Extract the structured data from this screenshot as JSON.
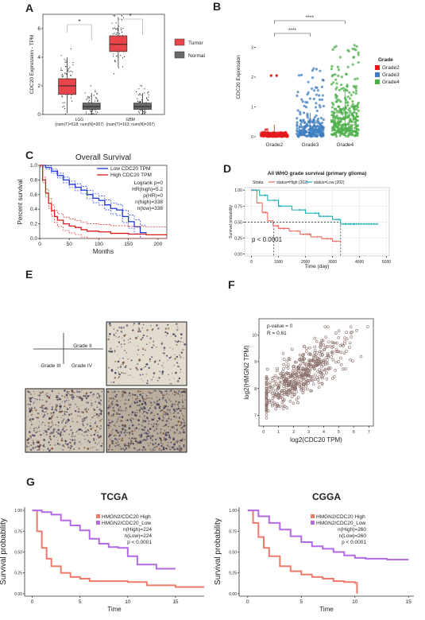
{
  "panel_letters": [
    "A",
    "B",
    "C",
    "D",
    "E",
    "F",
    "G"
  ],
  "colors": {
    "tumor": "#e8444a",
    "normal": "#6a6a6a",
    "grade2": "#e41a1c",
    "grade3": "#3e7dbf",
    "grade4": "#4daf4a",
    "km_low": "#1a34d9",
    "km_high": "#d91a1a",
    "km_d_high": "#ee6b62",
    "km_d_low": "#17b0b6",
    "g_high": "#ee7a6b",
    "g_low": "#b46ae3",
    "scatter": "#8a6f6a"
  },
  "chart_data": [
    {
      "panel": "A",
      "type": "box",
      "ylabel": "CDC20 Expression - TPM",
      "yticks": [
        "0",
        "2",
        "4",
        "6"
      ],
      "ylim": [
        0,
        7
      ],
      "legend": [
        "Tumor",
        "Normal"
      ],
      "categories": [
        "LGG",
        "GBM"
      ],
      "category_notes": [
        "(num(T)=518; num(N)=207)",
        "(num(T)=163; num(N)=207)"
      ],
      "significance": [
        "*",
        "*"
      ],
      "boxes": [
        {
          "group": "LGG",
          "series": "Tumor",
          "q1": 1.4,
          "median": 2.0,
          "q3": 2.5,
          "whisker_low": 0.1,
          "whisker_high": 4.0
        },
        {
          "group": "LGG",
          "series": "Normal",
          "q1": 0.35,
          "median": 0.55,
          "q3": 0.8,
          "whisker_low": 0.0,
          "whisker_high": 1.5
        },
        {
          "group": "GBM",
          "series": "Tumor",
          "q1": 4.4,
          "median": 4.9,
          "q3": 5.5,
          "whisker_low": 3.3,
          "whisker_high": 6.8
        },
        {
          "group": "GBM",
          "series": "Normal",
          "q1": 0.35,
          "median": 0.55,
          "q3": 0.8,
          "whisker_low": 0.0,
          "whisker_high": 1.5
        }
      ]
    },
    {
      "panel": "B",
      "type": "box",
      "ylabel": "CDC20 Expression",
      "yticks": [
        "0",
        "1",
        "2",
        "3"
      ],
      "ylim": [
        0,
        4
      ],
      "categories": [
        "Grade2",
        "Grade3",
        "Grade4"
      ],
      "legend_title": "Grade",
      "legend": [
        "Grade2",
        "Grade3",
        "Grade4"
      ],
      "significance": [
        "****",
        "****"
      ],
      "boxes": [
        {
          "group": "Grade2",
          "q1": 0.02,
          "median": 0.06,
          "q3": 0.15,
          "whisker_low": 0.0,
          "whisker_high": 0.4
        },
        {
          "group": "Grade3",
          "q1": 0.05,
          "median": 0.15,
          "q3": 0.35,
          "whisker_low": 0.0,
          "whisker_high": 0.8
        },
        {
          "group": "Grade4",
          "q1": 0.2,
          "median": 0.4,
          "q3": 0.8,
          "whisker_low": 0.0,
          "whisker_high": 1.6
        }
      ]
    },
    {
      "panel": "C",
      "type": "line",
      "title": "Overall Survival",
      "xlabel": "Months",
      "ylabel": "Percent survival",
      "xticks": [
        "0",
        "50",
        "100",
        "150",
        "200"
      ],
      "yticks": [
        "0.0",
        "0.2",
        "0.4",
        "0.6",
        "0.8",
        "1.0"
      ],
      "xlim": [
        0,
        215
      ],
      "ylim": [
        0,
        1.0
      ],
      "legend": [
        "Low CDC20 TPM",
        "High CDC20 TPM"
      ],
      "stats": [
        "Logrank p=0",
        "HR(high)=5.2",
        "p(HR)=0",
        "n(high)=338",
        "n(low)=338"
      ],
      "series": [
        {
          "name": "Low CDC20 TPM",
          "x": [
            0,
            10,
            20,
            30,
            40,
            50,
            60,
            70,
            80,
            90,
            100,
            110,
            120,
            130,
            140,
            150,
            160,
            170,
            180
          ],
          "y": [
            1.0,
            0.97,
            0.92,
            0.86,
            0.8,
            0.74,
            0.7,
            0.66,
            0.6,
            0.55,
            0.52,
            0.46,
            0.41,
            0.39,
            0.3,
            0.23,
            0.16,
            0.08,
            0.07
          ]
        },
        {
          "name": "High CDC20 TPM",
          "x": [
            0,
            5,
            10,
            15,
            20,
            25,
            30,
            40,
            50,
            60,
            70,
            80,
            100,
            120,
            150,
            180,
            215
          ],
          "y": [
            1.0,
            0.8,
            0.62,
            0.48,
            0.38,
            0.3,
            0.25,
            0.2,
            0.17,
            0.15,
            0.12,
            0.1,
            0.09,
            0.07,
            0.06,
            0.05,
            0.05
          ]
        }
      ]
    },
    {
      "panel": "D",
      "type": "line",
      "title": "All WHO grade survival (primary glioma)",
      "xlabel": "Time (day)",
      "ylabel": "Survival probability",
      "xticks": [
        "0",
        "1000",
        "2000",
        "3000",
        "4000",
        "5000"
      ],
      "yticks": [
        "0.00",
        "0.25",
        "0.50",
        "0.75",
        "1.00"
      ],
      "xlim": [
        0,
        5000
      ],
      "ylim": [
        0,
        1.0
      ],
      "legend_title": "Strata",
      "legend": [
        "status=High (202)",
        "status=Low (202)"
      ],
      "pvalue": "p < 0.0001",
      "series": [
        {
          "name": "status=High (202)",
          "x": [
            0,
            200,
            400,
            600,
            800,
            1000,
            1400,
            1800,
            2200,
            2600,
            3000,
            3300
          ],
          "y": [
            1.0,
            0.8,
            0.65,
            0.52,
            0.44,
            0.4,
            0.36,
            0.31,
            0.27,
            0.24,
            0.2,
            0.17
          ]
        },
        {
          "name": "status=Low (202)",
          "x": [
            0,
            300,
            600,
            1000,
            1500,
            2000,
            2500,
            3000,
            3300,
            3500,
            4000,
            4700
          ],
          "y": [
            1.0,
            0.92,
            0.84,
            0.75,
            0.69,
            0.64,
            0.59,
            0.54,
            0.47,
            0.47,
            0.47,
            0.47
          ]
        }
      ]
    },
    {
      "panel": "E",
      "type": "other",
      "labels": [
        "Grade II",
        "Grade III",
        "Grade IV"
      ]
    },
    {
      "panel": "F",
      "type": "scatter",
      "xlabel": "log2(CDC20 TPM)",
      "ylabel": "log2(HMGN2 TPM)",
      "xticks": [
        "0",
        "1",
        "2",
        "3",
        "4",
        "5",
        "6",
        "7"
      ],
      "yticks": [
        "7",
        "8",
        "9",
        "10"
      ],
      "xlim": [
        -0.3,
        7.3
      ],
      "ylim": [
        6.6,
        10.6
      ],
      "stats": [
        "p-value = 0",
        "R = 0.61"
      ]
    },
    {
      "panel": "G",
      "type": "line",
      "title": "TCGA",
      "xlabel": "Time",
      "ylabel": "Survival probability",
      "xticks": [
        "0",
        "5",
        "10",
        "15"
      ],
      "yticks": [
        "0.00",
        "0.25",
        "0.50",
        "0.75",
        "1.00"
      ],
      "xlim": [
        0,
        18
      ],
      "ylim": [
        0,
        1.0
      ],
      "legend": [
        "HMGN2/CDC20 High",
        "HMGN2/CDC20_Low"
      ],
      "stats": [
        "n(High)=224",
        "n(Low)=224",
        "p < 0.0001"
      ],
      "series": [
        {
          "name": "HMGN2/CDC20 High",
          "x": [
            0,
            0.5,
            1,
            1.5,
            2,
            3,
            4,
            5,
            6,
            8,
            10,
            12,
            15,
            18
          ],
          "y": [
            1.0,
            0.75,
            0.55,
            0.42,
            0.33,
            0.25,
            0.2,
            0.18,
            0.15,
            0.15,
            0.14,
            0.1,
            0.08,
            0.08
          ]
        },
        {
          "name": "HMGN2/CDC20_Low",
          "x": [
            0,
            1,
            2,
            3,
            4,
            5,
            6,
            7,
            8,
            9,
            10,
            11,
            13,
            15
          ],
          "y": [
            1.0,
            0.98,
            0.95,
            0.88,
            0.82,
            0.76,
            0.66,
            0.6,
            0.56,
            0.55,
            0.45,
            0.35,
            0.3,
            0.3
          ]
        }
      ]
    },
    {
      "panel": "G",
      "type": "line",
      "title": "CGGA",
      "xlabel": "Time",
      "ylabel": "Survival probability",
      "xticks": [
        "0",
        "5",
        "10",
        "15"
      ],
      "yticks": [
        "0.00",
        "0.25",
        "0.50",
        "0.75",
        "1.00"
      ],
      "xlim": [
        0,
        15.5
      ],
      "ylim": [
        0,
        1.0
      ],
      "legend": [
        "HMGN2/CDC20 High",
        "HMGN2/CDC20_Low"
      ],
      "stats": [
        "n(High)=260",
        "n(Low)=260",
        "p < 0.0001"
      ],
      "series": [
        {
          "name": "HMGN2/CDC20 High",
          "x": [
            0,
            0.5,
            1,
            1.5,
            2,
            3,
            4,
            5,
            6,
            7,
            8,
            9,
            10,
            10.2
          ],
          "y": [
            1.0,
            0.85,
            0.68,
            0.55,
            0.45,
            0.33,
            0.27,
            0.23,
            0.2,
            0.18,
            0.15,
            0.14,
            0.13,
            0.0
          ]
        },
        {
          "name": "HMGN2/CDC20_Low",
          "x": [
            0,
            1,
            2,
            3,
            4,
            5,
            6,
            7,
            8,
            9,
            10,
            11,
            13,
            15
          ],
          "y": [
            1.0,
            0.93,
            0.85,
            0.77,
            0.69,
            0.62,
            0.57,
            0.54,
            0.5,
            0.46,
            0.43,
            0.42,
            0.41,
            0.41
          ]
        }
      ]
    }
  ]
}
